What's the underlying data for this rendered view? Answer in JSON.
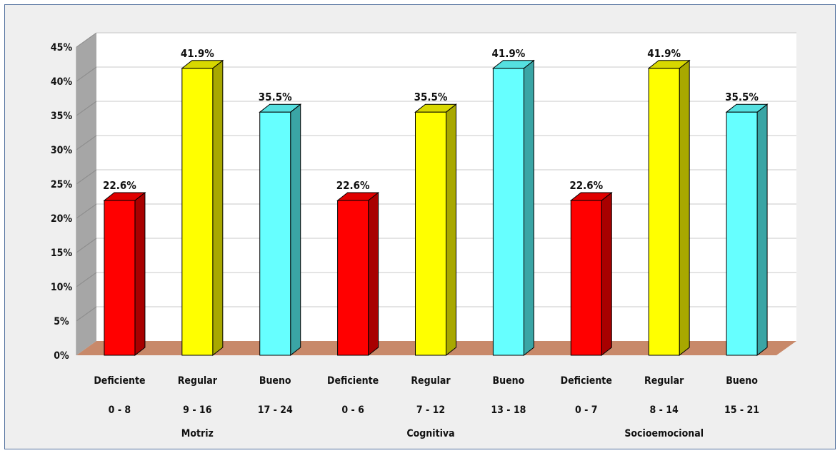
{
  "chart_data": {
    "type": "bar",
    "style": "3d-column",
    "ylim": [
      0,
      45
    ],
    "yticks": [
      "0%",
      "5%",
      "10%",
      "15%",
      "20%",
      "25%",
      "30%",
      "35%",
      "40%",
      "45%"
    ],
    "grid": true,
    "legend": "none",
    "categories": [
      {
        "level": "Deficiente",
        "range": "0 - 8",
        "group": "Motriz"
      },
      {
        "level": "Regular",
        "range": "9 - 16",
        "group": "Motriz"
      },
      {
        "level": "Bueno",
        "range": "17 - 24",
        "group": "Motriz"
      },
      {
        "level": "Deficiente",
        "range": "0 - 6",
        "group": "Cognitiva"
      },
      {
        "level": "Regular",
        "range": "7 - 12",
        "group": "Cognitiva"
      },
      {
        "level": "Bueno",
        "range": "13 - 18",
        "group": "Cognitiva"
      },
      {
        "level": "Deficiente",
        "range": "0 - 7",
        "group": "Socioemocional"
      },
      {
        "level": "Regular",
        "range": "8 - 14",
        "group": "Socioemocional"
      },
      {
        "level": "Bueno",
        "range": "15 - 21",
        "group": "Socioemocional"
      }
    ],
    "groups": [
      "Motriz",
      "Cognitiva",
      "Socioemocional"
    ],
    "values": [
      22.6,
      41.9,
      35.5,
      22.6,
      35.5,
      41.9,
      22.6,
      41.9,
      35.5
    ],
    "value_labels": [
      "22.6%",
      "41.9%",
      "35.5%",
      "22.6%",
      "35.5%",
      "41.9%",
      "22.6%",
      "41.9%",
      "35.5%"
    ],
    "colors": {
      "Deficiente": {
        "front": "#ff0000",
        "side": "#a80000",
        "top": "#e00000"
      },
      "Regular": {
        "front": "#ffff00",
        "side": "#a8a800",
        "top": "#d8d800"
      },
      "Bueno": {
        "front": "#66ffff",
        "side": "#3aa5a5",
        "top": "#55e0e0"
      },
      "floor": "#c8896a",
      "wall": "#ffffff",
      "side_wall": "#a6a6a6",
      "grid": "#c8c8c8"
    }
  }
}
